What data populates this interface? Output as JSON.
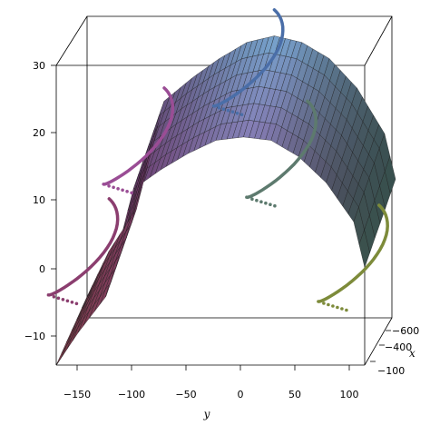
{
  "chart_data": {
    "type": "surface3d",
    "title": "",
    "xlabel": "x",
    "ylabel": "y",
    "zlabel": "",
    "x_ticks": [
      "−600",
      "−400",
      "−100"
    ],
    "y_ticks": [
      "−150",
      "−100",
      "−50",
      "0",
      "50",
      "100"
    ],
    "z_ticks": [
      "−10",
      "0",
      "10",
      "20",
      "30"
    ],
    "x_range": [
      -700,
      -50
    ],
    "y_range": [
      -170,
      110
    ],
    "z_range": [
      -13,
      33
    ],
    "surface": {
      "description_of_shape": "parabolic cylinder z = 22 - y^2/1250 rising slightly with x",
      "y_samples": [
        -170,
        -150,
        -125,
        -100,
        -75,
        -50,
        -25,
        0,
        25,
        50,
        75,
        100,
        110
      ],
      "z_at_x_min": [
        -13,
        -8,
        -2.5,
        14,
        17,
        19.5,
        21.5,
        22,
        21.5,
        19,
        15,
        9,
        2
      ],
      "z_at_x_max": [
        -10,
        -3,
        3.5,
        20,
        23.5,
        26.5,
        29,
        30,
        29,
        26.5,
        22,
        15,
        8
      ],
      "colors_low": "#e26a83",
      "colors_mid": "#9a4d95",
      "colors_high": "#6fb2d6",
      "colors_right": "#2f7a5e"
    },
    "curves": [
      {
        "color": "#4a6ea8",
        "points_y": [
          0
        ],
        "z": 30
      },
      {
        "color": "#9a4d95",
        "points_y": [
          -100
        ],
        "z": 18
      },
      {
        "color": "#5d7a6e",
        "points_y": [
          30
        ],
        "z": 16
      },
      {
        "color": "#8b3e6f",
        "points_y": [
          -150
        ],
        "z": 1
      },
      {
        "color": "#7d8b3a",
        "points_y": [
          95
        ],
        "z": 0
      }
    ],
    "grid": false,
    "legend": "none"
  }
}
